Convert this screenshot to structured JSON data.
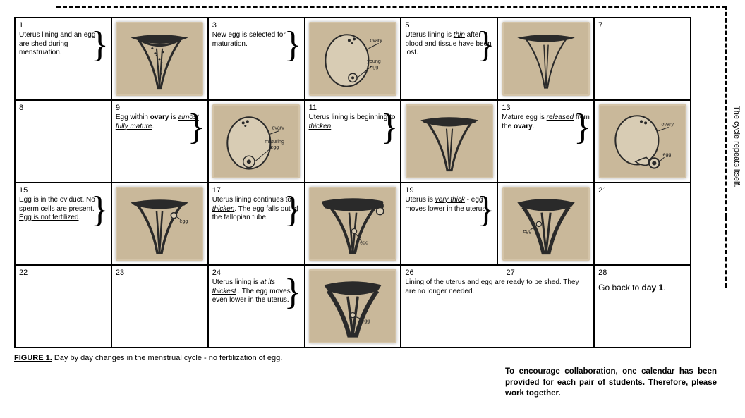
{
  "side_label": "The cycle repeats itself.",
  "caption_bold": "FIGURE 1.",
  "caption_rest": " Day by day changes in the menstrual cycle - no fertilization of egg.",
  "note": "To encourage collaboration, one calendar has been provided for each pair of students. Therefore, please work together.",
  "cells": {
    "c1": {
      "num": "1",
      "html": "Uterus lining and an egg are shed during menstruation."
    },
    "c3": {
      "num": "3",
      "html": "New egg is selected for maturation."
    },
    "c5": {
      "num": "5",
      "html": "Uterus lining is <i><u>thin</u></i> after blood and tissue have been lost."
    },
    "c7": {
      "num": "7",
      "html": ""
    },
    "c8": {
      "num": "8",
      "html": ""
    },
    "c9": {
      "num": "9",
      "html": "Egg within <b>ovary</b> is <i><u>almost fully mature</u></i>."
    },
    "c11": {
      "num": "11",
      "html": "Uterus lining is beginning to <i><u>thicken</u></i>."
    },
    "c13": {
      "num": "13",
      "html": "Mature egg is <i><u>released</u></i> from the <b>ovary</b>."
    },
    "c15": {
      "num": "15",
      "html": "Egg is in the oviduct. No sperm cells are present. <u>Egg is not fertilized</u>."
    },
    "c17": {
      "num": "17",
      "html": "Uterus lining continues to <i><u>thicken</u></i>. The egg falls out of the fallopian tube."
    },
    "c19": {
      "num": "19",
      "html": "Uterus is <i><u>very thick</u></i> - egg moves lower in the uterus."
    },
    "c21": {
      "num": "21",
      "html": ""
    },
    "c22": {
      "num": "22",
      "html": ""
    },
    "c23": {
      "num": "23",
      "html": ""
    },
    "c24": {
      "num": "24",
      "html": "Uterus lining is <i><u>at its thickest</u></i> . The egg moves even lower in the uterus."
    },
    "c26": {
      "num": "26",
      "html": "Lining of the uterus and egg are ready to be shed. They are no longer needed."
    },
    "c27": {
      "num": "27",
      "html": ""
    },
    "c28": {
      "num": "28",
      "html": "Go back to <b>day 1</b>."
    }
  },
  "labels": {
    "ovary": "ovary",
    "young_egg": "young\negg",
    "maturing_egg": "maturing\negg",
    "egg": "egg"
  },
  "colors": {
    "photo_bg": "#c9b89a",
    "stroke": "#2a2a2a",
    "fill_light": "#d8ccb4",
    "fill_dark": "#6b5d48"
  }
}
